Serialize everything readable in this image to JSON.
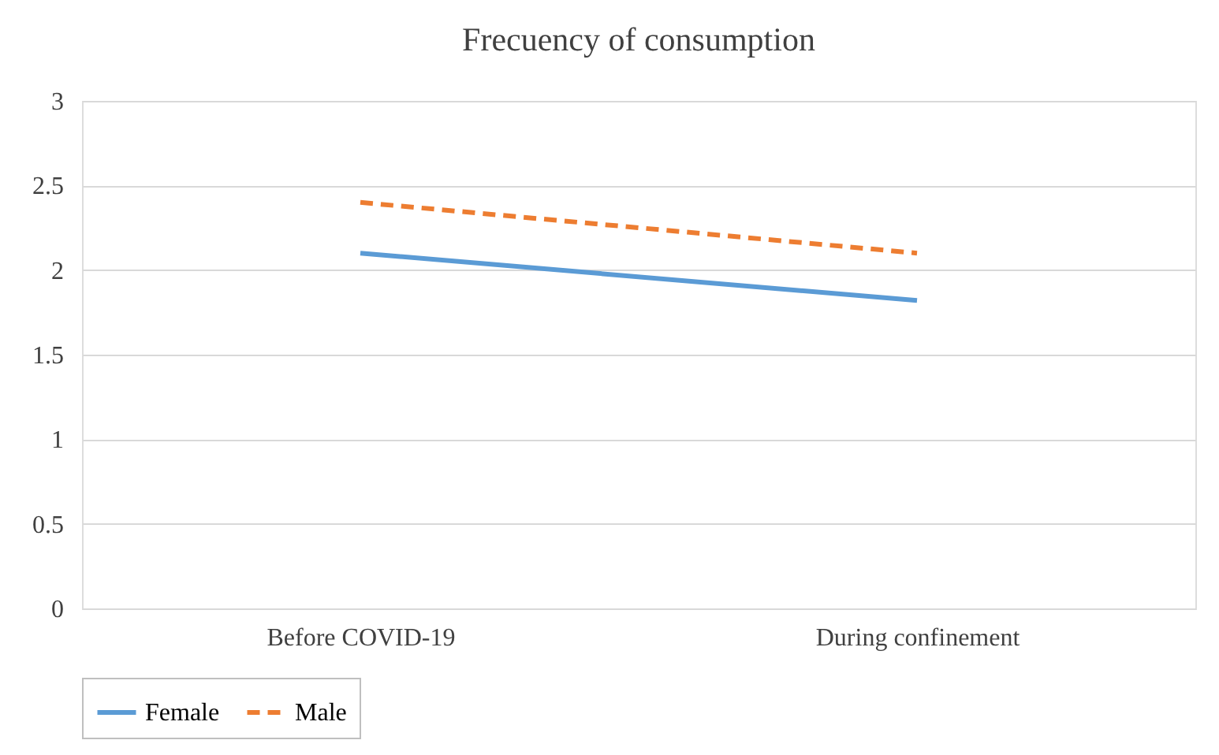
{
  "chart_data": {
    "type": "line",
    "title": "Frecuency of consumption",
    "categories": [
      "Before  COVID-19",
      "During confinement"
    ],
    "series": [
      {
        "name": "Female",
        "color": "#5b9bd5",
        "values": [
          2.1,
          1.82
        ],
        "line_style": "solid"
      },
      {
        "name": "Male",
        "color": "#ed7d31",
        "values": [
          2.4,
          2.1
        ],
        "line_style": "dashed"
      }
    ],
    "ylim": [
      0,
      3
    ],
    "yticks": [
      0,
      0.5,
      1,
      1.5,
      2,
      2.5,
      3
    ],
    "grid": "y",
    "legend": "bottom",
    "marker": "none"
  }
}
